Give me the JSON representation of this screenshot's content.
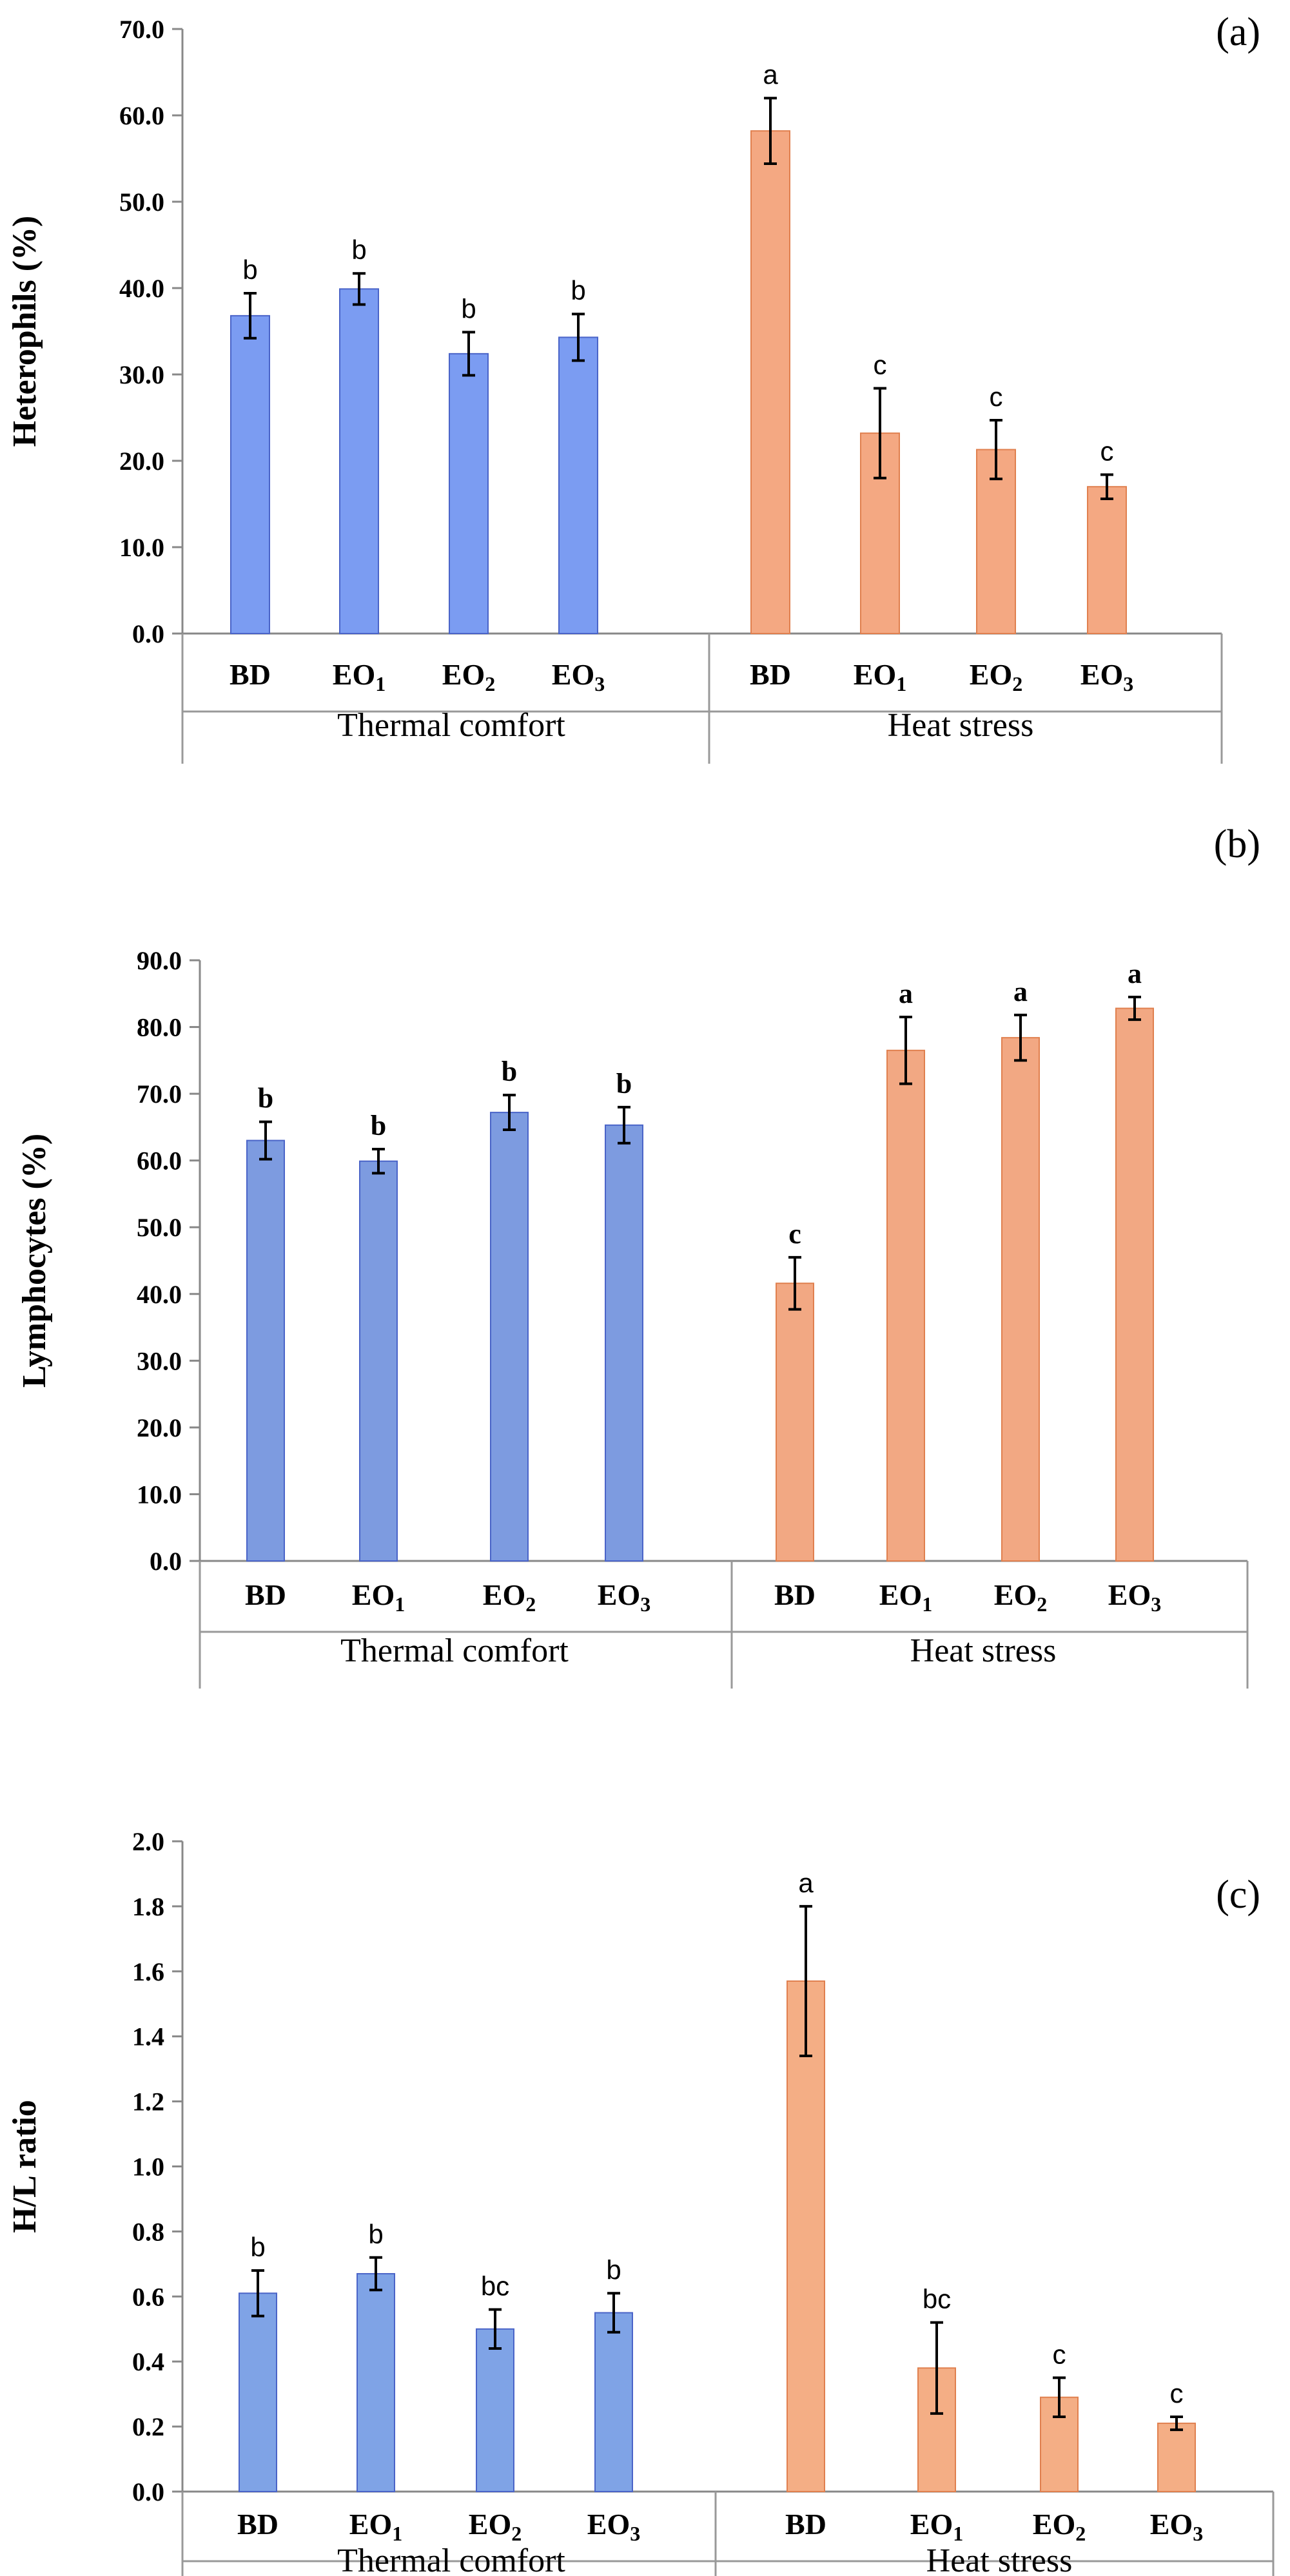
{
  "chart_data": [
    {
      "type": "bar",
      "panel_label": "(a)",
      "ylabel": "Heterophils (%)",
      "ylim": [
        0,
        70
      ],
      "yticks": [
        "0.0",
        "10.0",
        "20.0",
        "30.0",
        "40.0",
        "50.0",
        "60.0",
        "70.0"
      ],
      "groups": [
        "Thermal comfort",
        "Heat stress"
      ],
      "categories": [
        {
          "main": "BD",
          "sub": ""
        },
        {
          "main": "EO",
          "sub": "1"
        },
        {
          "main": "EO",
          "sub": "2"
        },
        {
          "main": "EO",
          "sub": "3"
        },
        {
          "main": "BD",
          "sub": ""
        },
        {
          "main": "EO",
          "sub": "1"
        },
        {
          "main": "EO",
          "sub": "2"
        },
        {
          "main": "EO",
          "sub": "3"
        }
      ],
      "values": [
        36.8,
        39.9,
        32.4,
        34.3,
        58.2,
        23.2,
        21.3,
        17.0
      ],
      "errors": [
        2.6,
        1.8,
        2.5,
        2.7,
        3.8,
        5.2,
        3.4,
        1.4
      ],
      "letters": [
        "b",
        "b",
        "b",
        "b",
        "a",
        "c",
        "c",
        "c"
      ],
      "letter_style": "regular",
      "colors": [
        "#7B9CF2",
        "#F4A882"
      ],
      "grid": false
    },
    {
      "type": "bar",
      "panel_label": "(b)",
      "ylabel": "Lymphocytes (%)",
      "ylim": [
        0,
        90
      ],
      "yticks": [
        "0.0",
        "10.0",
        "20.0",
        "30.0",
        "40.0",
        "50.0",
        "60.0",
        "70.0",
        "80.0",
        "90.0"
      ],
      "groups": [
        "Thermal comfort",
        "Heat stress"
      ],
      "categories": [
        {
          "main": "BD",
          "sub": ""
        },
        {
          "main": "EO",
          "sub": "1"
        },
        {
          "main": "EO",
          "sub": "2"
        },
        {
          "main": "EO",
          "sub": "3"
        },
        {
          "main": "BD",
          "sub": ""
        },
        {
          "main": "EO",
          "sub": "1"
        },
        {
          "main": "EO",
          "sub": "2"
        },
        {
          "main": "EO",
          "sub": "3"
        }
      ],
      "values": [
        63.0,
        59.9,
        67.2,
        65.3,
        41.6,
        76.5,
        78.4,
        82.8
      ],
      "errors": [
        2.8,
        1.8,
        2.6,
        2.7,
        3.9,
        5.0,
        3.4,
        1.7
      ],
      "letters": [
        "b",
        "b",
        "b",
        "b",
        "c",
        "a",
        "a",
        "a"
      ],
      "letter_style": "bold",
      "colors": [
        "#7D9BE0",
        "#F2A883"
      ],
      "grid": false
    },
    {
      "type": "bar",
      "panel_label": "(c)",
      "ylabel": "H/L ratio",
      "ylim": [
        0,
        2.0
      ],
      "yticks": [
        "0.0",
        "0.2",
        "0.4",
        "0.6",
        "0.8",
        "1.0",
        "1.2",
        "1.4",
        "1.6",
        "1.8",
        "2.0"
      ],
      "groups": [
        "Thermal comfort",
        "Heat stress"
      ],
      "categories": [
        {
          "main": "BD",
          "sub": ""
        },
        {
          "main": "EO",
          "sub": "1"
        },
        {
          "main": "EO",
          "sub": "2"
        },
        {
          "main": "EO",
          "sub": "3"
        },
        {
          "main": "BD",
          "sub": ""
        },
        {
          "main": "EO",
          "sub": "1"
        },
        {
          "main": "EO",
          "sub": "2"
        },
        {
          "main": "EO",
          "sub": "3"
        }
      ],
      "values": [
        0.61,
        0.67,
        0.5,
        0.55,
        1.57,
        0.38,
        0.29,
        0.21
      ],
      "errors": [
        0.07,
        0.05,
        0.06,
        0.06,
        0.23,
        0.14,
        0.06,
        0.02
      ],
      "letters": [
        "b",
        "b",
        "bc",
        "b",
        "a",
        "bc",
        "c",
        "c"
      ],
      "letter_style": "regular",
      "colors": [
        "#7FA3E6",
        "#F4AE85"
      ],
      "grid": false
    }
  ]
}
